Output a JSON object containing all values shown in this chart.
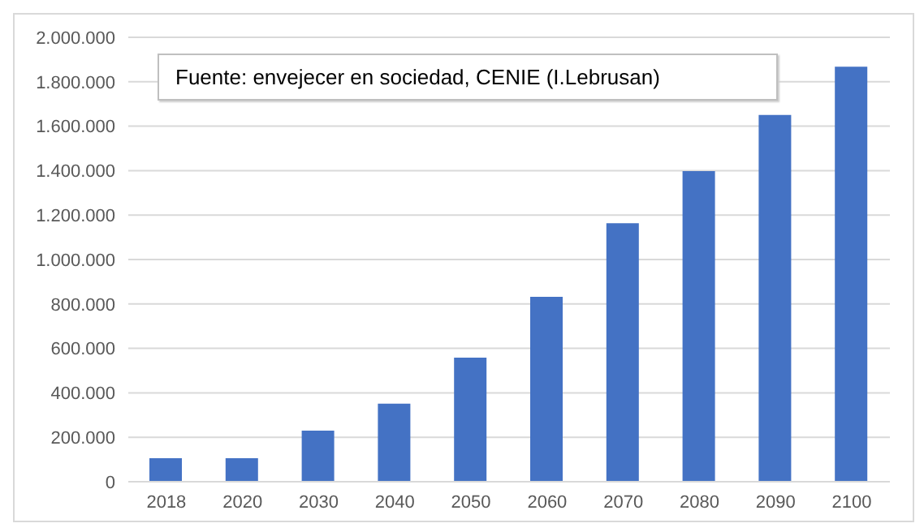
{
  "chart_data": {
    "type": "bar",
    "categories": [
      "2018",
      "2020",
      "2030",
      "2040",
      "2050",
      "2060",
      "2070",
      "2080",
      "2090",
      "2100"
    ],
    "values": [
      106000,
      106000,
      230000,
      351000,
      558000,
      832000,
      1163000,
      1398000,
      1651000,
      1868000
    ],
    "color": "#4472c4",
    "ylim": [
      0,
      2000000
    ],
    "yticks": [
      0,
      {
        "value": 200000,
        "label": "200.000"
      },
      {
        "value": 400000,
        "label": "400.000"
      },
      {
        "value": 600000,
        "label": "600.000"
      },
      {
        "value": 800000,
        "label": "800.000"
      },
      {
        "value": 1000000,
        "label": "1.000.000"
      },
      {
        "value": 1200000,
        "label": "1.200.000"
      },
      {
        "value": 1400000,
        "label": "1.400.000"
      },
      {
        "value": 1600000,
        "label": "1.600.000"
      },
      {
        "value": 1800000,
        "label": "1.800.000"
      },
      {
        "value": 2000000,
        "label": "2.000.000"
      }
    ],
    "grid": "y",
    "annotations": [
      "Fuente: envejecer en sociedad, CENIE (I.Lebrusan)"
    ]
  }
}
